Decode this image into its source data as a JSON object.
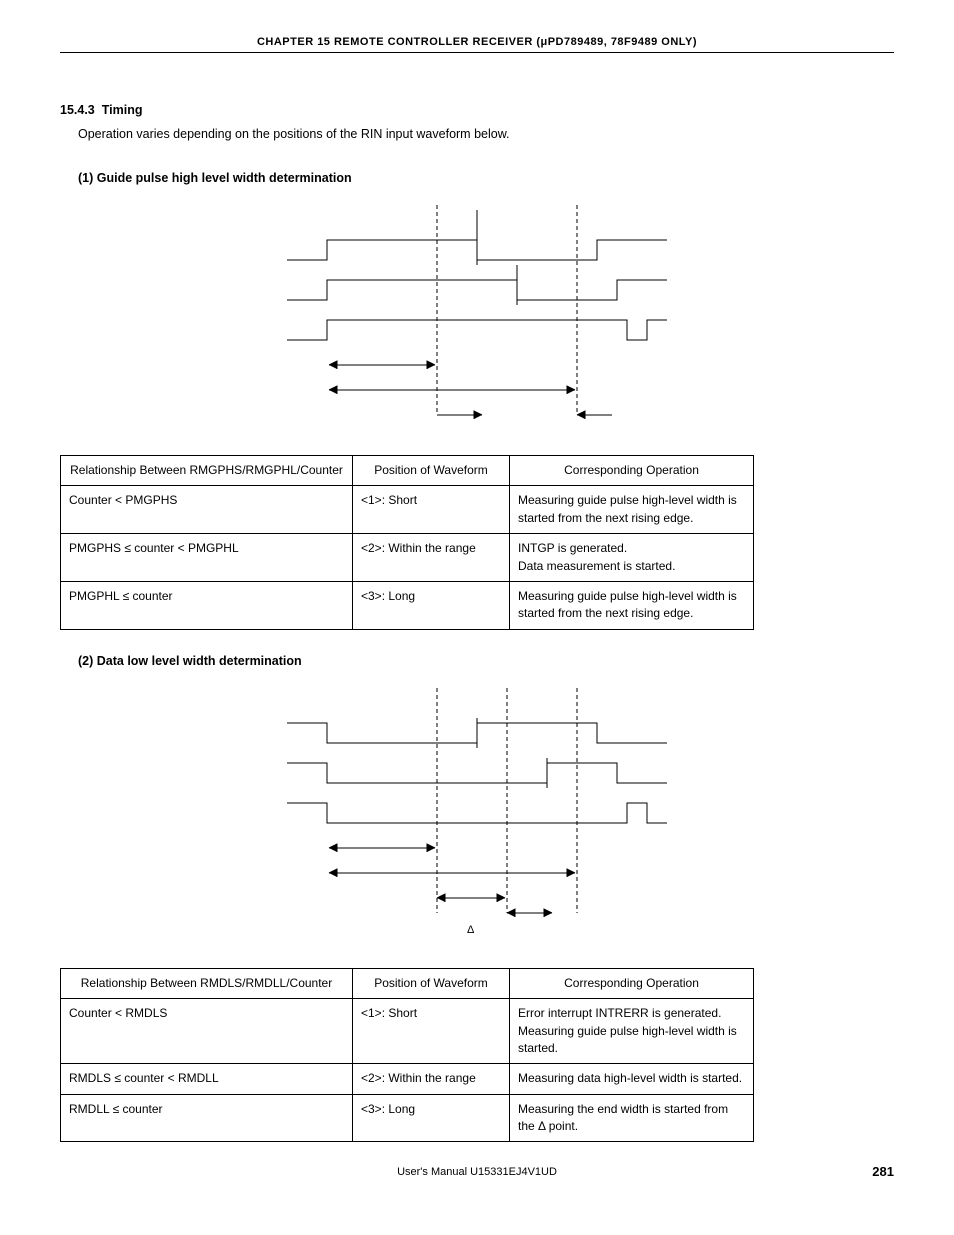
{
  "header": {
    "chapter": "CHAPTER  15   REMOTE  CONTROLLER  RECEIVER  (μPD789489, 78F9489 ONLY)"
  },
  "section": {
    "number": "15.4.3",
    "title": "Timing",
    "intro": "Operation varies depending on the positions of the RIN input waveform below."
  },
  "sub1": {
    "heading": "(1)  Guide pulse high level width determination"
  },
  "table1": {
    "headers": {
      "rel": "Relationship Between RMGPHS/RMGPHL/Counter",
      "pos": "Position of Waveform",
      "op": "Corresponding Operation"
    },
    "rows": [
      {
        "rel": "Counter < PMGPHS",
        "pos": "<1>: Short",
        "op": "Measuring guide pulse high-level width is started from the next rising edge."
      },
      {
        "rel": "PMGPHS ≤ counter < PMGPHL",
        "pos": "<2>: Within the range",
        "op": "INTGP is generated.\nData measurement is started."
      },
      {
        "rel": "PMGPHL ≤ counter",
        "pos": "<3>: Long",
        "op": "Measuring guide pulse high-level width is started from the next rising edge."
      }
    ]
  },
  "sub2": {
    "heading": "(2)  Data low level width determination"
  },
  "table2": {
    "headers": {
      "rel": "Relationship Between RMDLS/RMDLL/Counter",
      "pos": "Position of Waveform",
      "op": "Corresponding Operation"
    },
    "rows": [
      {
        "rel": "Counter < RMDLS",
        "pos": "<1>: Short",
        "op": "Error interrupt INTRERR is generated.\nMeasuring guide pulse high-level width is started."
      },
      {
        "rel": "RMDLS ≤ counter < RMDLL",
        "pos": "<2>: Within the range",
        "op": "Measuring data high-level width is started."
      },
      {
        "rel": "RMDLL ≤ counter",
        "pos": "<3>: Long",
        "op": "Measuring the end width is started from the Δ point."
      }
    ]
  },
  "diagram": {
    "delta_label": "Δ"
  },
  "footer": {
    "center": "User's Manual  U15331EJ4V1UD",
    "page": "281"
  },
  "style": {
    "stroke": "#000",
    "dash": "4,3"
  }
}
